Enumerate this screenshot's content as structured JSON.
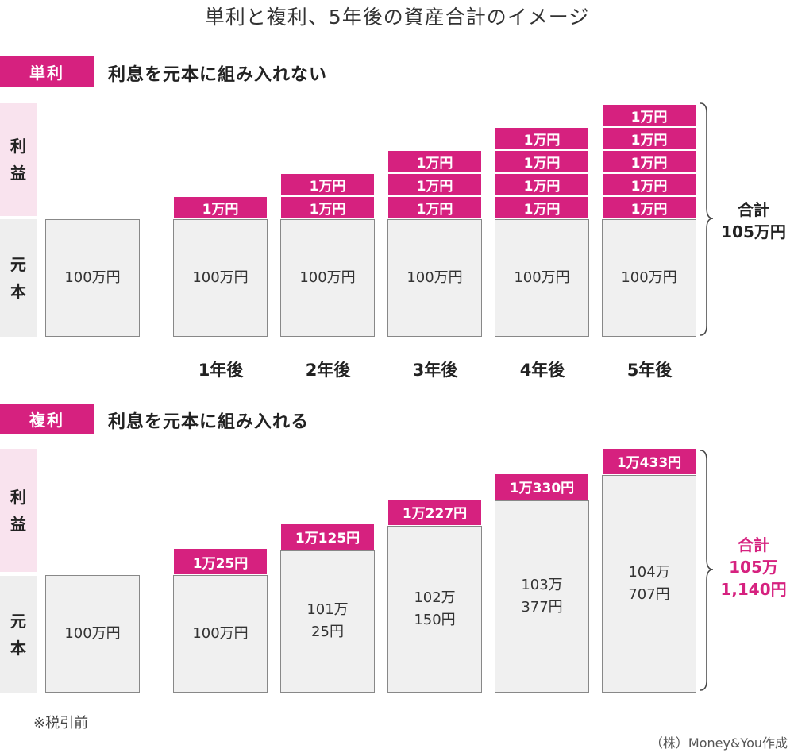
{
  "title": "単利と複利、5年後の資産合計のイメージ",
  "labels": {
    "interest": "利益",
    "principal": "元本"
  },
  "simple": {
    "tag": "単利",
    "subtitle": "利息を元本に組み入れない",
    "base_label": "100万円",
    "interest_label": "1万円",
    "columns": [
      {
        "year": "",
        "principal": "100万円",
        "interests": []
      },
      {
        "year": "1年後",
        "principal": "100万円",
        "interests": [
          "1万円"
        ]
      },
      {
        "year": "2年後",
        "principal": "100万円",
        "interests": [
          "1万円",
          "1万円"
        ]
      },
      {
        "year": "3年後",
        "principal": "100万円",
        "interests": [
          "1万円",
          "1万円",
          "1万円"
        ]
      },
      {
        "year": "4年後",
        "principal": "100万円",
        "interests": [
          "1万円",
          "1万円",
          "1万円",
          "1万円"
        ]
      },
      {
        "year": "5年後",
        "principal": "100万円",
        "interests": [
          "1万円",
          "1万円",
          "1万円",
          "1万円",
          "1万円"
        ]
      }
    ],
    "total_label": "合計",
    "total_value": "105万円",
    "total_color": "#222222"
  },
  "compound": {
    "tag": "複利",
    "subtitle": "利息を元本に組み入れる",
    "columns": [
      {
        "principal": [
          "100万円"
        ],
        "interest": "",
        "principal_value": 100,
        "interest_value": 0
      },
      {
        "principal": [
          "100万円"
        ],
        "interest": "1万25円",
        "principal_value": 100,
        "interest_value": 1.0025
      },
      {
        "principal": [
          "101万",
          "25円"
        ],
        "interest": "1万125円",
        "principal_value": 101.0025,
        "interest_value": 1.0125
      },
      {
        "principal": [
          "102万",
          "150円"
        ],
        "interest": "1万227円",
        "principal_value": 102.015,
        "interest_value": 1.0227
      },
      {
        "principal": [
          "103万",
          "377円"
        ],
        "interest": "1万330円",
        "principal_value": 103.0377,
        "interest_value": 1.033
      },
      {
        "principal": [
          "104万",
          "707円"
        ],
        "interest": "1万433円",
        "principal_value": 104.0707,
        "interest_value": 1.0433
      }
    ],
    "total_label": "合計",
    "total_value_1": "105万",
    "total_value_2": "1,140円",
    "total_color": "#d6217f"
  },
  "colors": {
    "accent": "#d6217f",
    "interest_bg": "#f9e3ee",
    "principal_bg": "#eeeeee",
    "bar_gray": "#f0f0f0"
  },
  "note": "※税引前",
  "credit": "（株）Money&You作成"
}
